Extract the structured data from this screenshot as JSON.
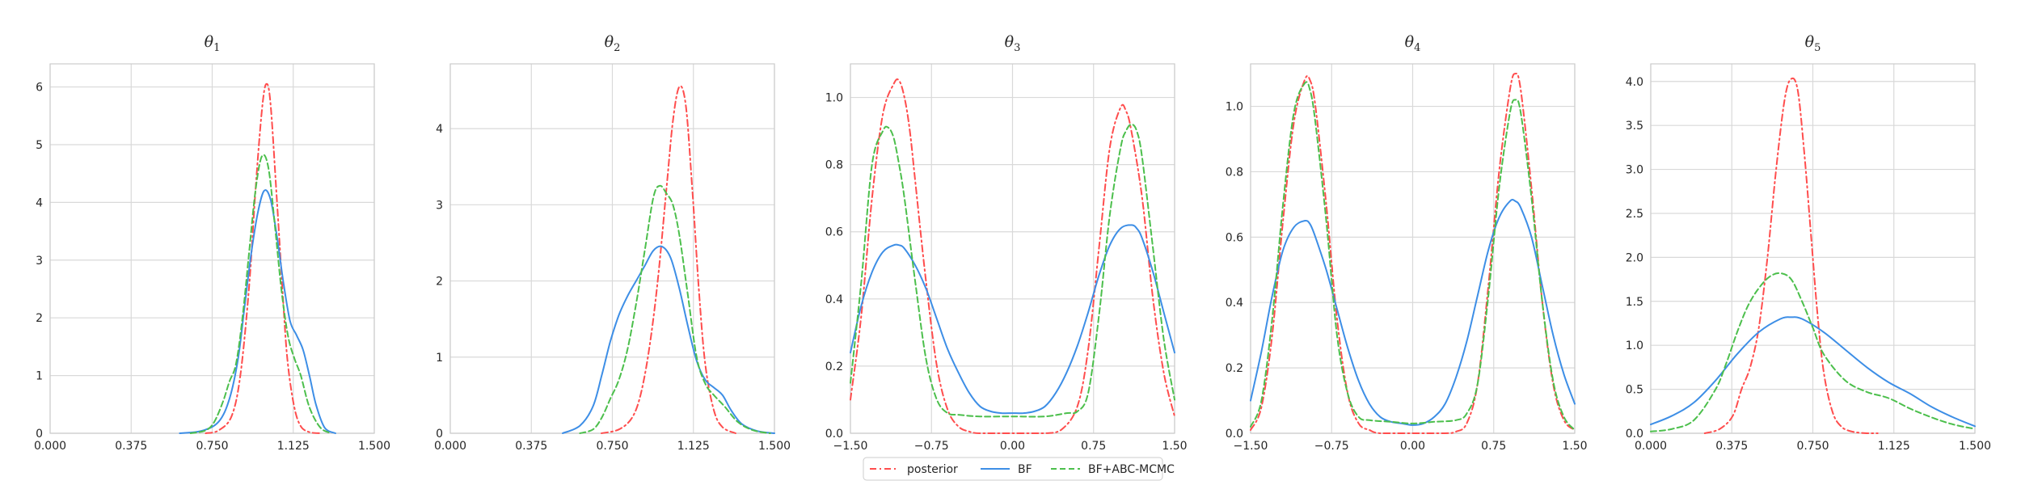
{
  "colors": {
    "posterior": "#ff4d4d",
    "BF": "#3d8ee6",
    "BF+ABC-MCMC": "#4cbf4c",
    "grid": "#d9d9d9",
    "frame": "#cccccc"
  },
  "legend": {
    "placement": "bottom-center",
    "entries": [
      {
        "key": "posterior",
        "label": "posterior",
        "dash": "dashdot"
      },
      {
        "key": "BF",
        "label": "BF",
        "dash": "solid"
      },
      {
        "key": "BF+ABC-MCMC",
        "label": "BF+ABC-MCMC",
        "dash": "dashed"
      }
    ]
  },
  "chart_data": [
    {
      "type": "line",
      "title_main": "θ",
      "title_sub": "1",
      "grid": true,
      "xlim": [
        0,
        1.5
      ],
      "ylim": [
        0,
        6.4
      ],
      "xticks": [
        0,
        0.375,
        0.75,
        1.125,
        1.5
      ],
      "xtick_labels": [
        "0.000",
        "0.375",
        "0.750",
        "1.125",
        "1.500"
      ],
      "yticks": [
        0,
        1,
        2,
        3,
        4,
        5,
        6
      ],
      "ytick_labels": [
        "0",
        "1",
        "2",
        "3",
        "4",
        "5",
        "6"
      ],
      "series": [
        {
          "name": "posterior",
          "x": [
            0.72,
            0.78,
            0.84,
            0.88,
            0.92,
            0.95,
            0.98,
            1.0,
            1.02,
            1.05,
            1.08,
            1.1,
            1.13,
            1.16,
            1.2,
            1.25
          ],
          "y": [
            0,
            0.05,
            0.3,
            1.0,
            2.5,
            4.2,
            5.6,
            6.05,
            5.7,
            4.0,
            2.2,
            1.2,
            0.45,
            0.12,
            0.02,
            0
          ]
        },
        {
          "name": "BF",
          "x": [
            0.6,
            0.7,
            0.78,
            0.83,
            0.87,
            0.9,
            0.93,
            0.96,
            0.99,
            1.02,
            1.05,
            1.08,
            1.11,
            1.14,
            1.17,
            1.2,
            1.23,
            1.27,
            1.32
          ],
          "y": [
            0,
            0.04,
            0.2,
            0.6,
            1.3,
            2.2,
            3.1,
            3.8,
            4.2,
            4.05,
            3.4,
            2.6,
            1.95,
            1.7,
            1.45,
            1.0,
            0.5,
            0.1,
            0
          ]
        },
        {
          "name": "BF+ABC-MCMC",
          "x": [
            0.65,
            0.72,
            0.76,
            0.8,
            0.83,
            0.86,
            0.89,
            0.92,
            0.95,
            0.98,
            1.01,
            1.04,
            1.07,
            1.1,
            1.13,
            1.16,
            1.2,
            1.25,
            1.3
          ],
          "y": [
            0,
            0.05,
            0.2,
            0.55,
            0.9,
            1.2,
            2.0,
            3.1,
            4.2,
            4.8,
            4.6,
            3.6,
            2.5,
            1.7,
            1.3,
            1.0,
            0.45,
            0.1,
            0
          ]
        }
      ]
    },
    {
      "type": "line",
      "title_main": "θ",
      "title_sub": "2",
      "grid": true,
      "xlim": [
        0,
        1.5
      ],
      "ylim": [
        0,
        4.85
      ],
      "xticks": [
        0,
        0.375,
        0.75,
        1.125,
        1.5
      ],
      "xtick_labels": [
        "0.000",
        "0.375",
        "0.750",
        "1.125",
        "1.500"
      ],
      "yticks": [
        0,
        1,
        2,
        3,
        4
      ],
      "ytick_labels": [
        "0",
        "1",
        "2",
        "3",
        "4"
      ],
      "series": [
        {
          "name": "posterior",
          "x": [
            0.7,
            0.78,
            0.84,
            0.88,
            0.92,
            0.96,
            1.0,
            1.03,
            1.06,
            1.09,
            1.12,
            1.15,
            1.18,
            1.22,
            1.26,
            1.32
          ],
          "y": [
            0,
            0.05,
            0.2,
            0.5,
            1.1,
            2.0,
            3.2,
            4.1,
            4.55,
            4.3,
            3.2,
            1.9,
            0.9,
            0.3,
            0.08,
            0
          ]
        },
        {
          "name": "BF",
          "x": [
            0.52,
            0.6,
            0.66,
            0.7,
            0.74,
            0.78,
            0.82,
            0.86,
            0.9,
            0.94,
            0.98,
            1.02,
            1.06,
            1.1,
            1.14,
            1.18,
            1.22,
            1.26,
            1.3,
            1.35,
            1.42,
            1.5
          ],
          "y": [
            0,
            0.1,
            0.35,
            0.75,
            1.2,
            1.55,
            1.8,
            2.0,
            2.2,
            2.4,
            2.45,
            2.3,
            1.9,
            1.4,
            0.95,
            0.7,
            0.6,
            0.5,
            0.3,
            0.12,
            0.03,
            0
          ]
        },
        {
          "name": "BF+ABC-MCMC",
          "x": [
            0.6,
            0.66,
            0.7,
            0.74,
            0.78,
            0.82,
            0.86,
            0.9,
            0.94,
            0.97,
            1.0,
            1.03,
            1.06,
            1.1,
            1.14,
            1.18,
            1.22,
            1.27,
            1.33,
            1.4,
            1.48
          ],
          "y": [
            0,
            0.05,
            0.2,
            0.45,
            0.7,
            1.1,
            1.7,
            2.4,
            3.1,
            3.25,
            3.15,
            3.0,
            2.6,
            1.8,
            1.0,
            0.65,
            0.5,
            0.35,
            0.15,
            0.04,
            0
          ]
        }
      ]
    },
    {
      "type": "line",
      "title_main": "θ",
      "title_sub": "3",
      "grid": true,
      "xlim": [
        -1.5,
        1.5
      ],
      "ylim": [
        0,
        1.1
      ],
      "xticks": [
        -1.5,
        -0.75,
        0,
        0.75,
        1.5
      ],
      "xtick_labels": [
        "−1.50",
        "−0.75",
        "0.00",
        "0.75",
        "1.50"
      ],
      "yticks": [
        0,
        0.2,
        0.4,
        0.6,
        0.8,
        1.0
      ],
      "ytick_labels": [
        "0.0",
        "0.2",
        "0.4",
        "0.6",
        "0.8",
        "1.0"
      ],
      "series": [
        {
          "name": "posterior",
          "x": [
            -1.5,
            -1.4,
            -1.3,
            -1.2,
            -1.1,
            -1.05,
            -1.0,
            -0.95,
            -0.9,
            -0.8,
            -0.7,
            -0.6,
            -0.5,
            -0.4,
            -0.3,
            0,
            0.3,
            0.45,
            0.6,
            0.7,
            0.8,
            0.9,
            1.0,
            1.05,
            1.1,
            1.2,
            1.3,
            1.4,
            1.5
          ],
          "y": [
            0.1,
            0.35,
            0.7,
            0.95,
            1.04,
            1.05,
            1.0,
            0.9,
            0.75,
            0.45,
            0.2,
            0.07,
            0.02,
            0.005,
            0,
            0,
            0,
            0.01,
            0.08,
            0.25,
            0.55,
            0.85,
            0.97,
            0.96,
            0.9,
            0.7,
            0.4,
            0.18,
            0.05
          ]
        },
        {
          "name": "BF",
          "x": [
            -1.5,
            -1.4,
            -1.3,
            -1.2,
            -1.1,
            -1.05,
            -1.0,
            -0.9,
            -0.8,
            -0.7,
            -0.6,
            -0.5,
            -0.4,
            -0.3,
            -0.2,
            -0.1,
            0,
            0.1,
            0.2,
            0.3,
            0.4,
            0.5,
            0.6,
            0.7,
            0.8,
            0.9,
            1.0,
            1.1,
            1.15,
            1.2,
            1.3,
            1.4,
            1.5
          ],
          "y": [
            0.24,
            0.38,
            0.48,
            0.54,
            0.56,
            0.56,
            0.55,
            0.5,
            0.43,
            0.34,
            0.25,
            0.18,
            0.12,
            0.08,
            0.065,
            0.06,
            0.06,
            0.06,
            0.065,
            0.08,
            0.12,
            0.18,
            0.26,
            0.36,
            0.47,
            0.56,
            0.61,
            0.62,
            0.61,
            0.58,
            0.48,
            0.36,
            0.24
          ]
        },
        {
          "name": "BF+ABC-MCMC",
          "x": [
            -1.5,
            -1.4,
            -1.3,
            -1.2,
            -1.15,
            -1.1,
            -1.05,
            -1.0,
            -0.9,
            -0.8,
            -0.7,
            -0.6,
            -0.5,
            -0.3,
            0,
            0.3,
            0.5,
            0.6,
            0.7,
            0.8,
            0.9,
            1.0,
            1.05,
            1.1,
            1.15,
            1.2,
            1.3,
            1.4,
            1.5
          ],
          "y": [
            0.15,
            0.45,
            0.8,
            0.9,
            0.91,
            0.88,
            0.8,
            0.7,
            0.45,
            0.22,
            0.1,
            0.06,
            0.055,
            0.05,
            0.05,
            0.05,
            0.06,
            0.065,
            0.12,
            0.35,
            0.65,
            0.85,
            0.9,
            0.92,
            0.9,
            0.82,
            0.55,
            0.28,
            0.1
          ]
        }
      ]
    },
    {
      "type": "line",
      "title_main": "θ",
      "title_sub": "4",
      "grid": true,
      "xlim": [
        -1.5,
        1.5
      ],
      "ylim": [
        0,
        1.13
      ],
      "xticks": [
        -1.5,
        -0.75,
        0,
        0.75,
        1.5
      ],
      "xtick_labels": [
        "−1.50",
        "−0.75",
        "0.00",
        "0.75",
        "1.50"
      ],
      "yticks": [
        0,
        0.2,
        0.4,
        0.6,
        0.8,
        1.0
      ],
      "ytick_labels": [
        "0.0",
        "0.2",
        "0.4",
        "0.6",
        "0.8",
        "1.0"
      ],
      "series": [
        {
          "name": "posterior",
          "x": [
            -1.5,
            -1.4,
            -1.3,
            -1.2,
            -1.1,
            -1.0,
            -0.95,
            -0.9,
            -0.8,
            -0.7,
            -0.6,
            -0.5,
            -0.4,
            -0.3,
            0,
            0.3,
            0.4,
            0.5,
            0.6,
            0.7,
            0.8,
            0.9,
            0.95,
            1.0,
            1.1,
            1.2,
            1.3,
            1.4,
            1.5
          ],
          "y": [
            0.01,
            0.08,
            0.3,
            0.65,
            0.95,
            1.08,
            1.08,
            1.0,
            0.7,
            0.35,
            0.12,
            0.03,
            0.01,
            0,
            0,
            0,
            0.005,
            0.03,
            0.15,
            0.45,
            0.8,
            1.05,
            1.1,
            1.05,
            0.75,
            0.4,
            0.15,
            0.04,
            0.01
          ]
        },
        {
          "name": "BF",
          "x": [
            -1.5,
            -1.4,
            -1.3,
            -1.2,
            -1.1,
            -1.0,
            -0.95,
            -0.9,
            -0.8,
            -0.7,
            -0.6,
            -0.5,
            -0.4,
            -0.3,
            -0.2,
            -0.1,
            0,
            0.1,
            0.2,
            0.3,
            0.4,
            0.5,
            0.6,
            0.7,
            0.8,
            0.9,
            0.95,
            1.0,
            1.1,
            1.2,
            1.3,
            1.4,
            1.5
          ],
          "y": [
            0.1,
            0.25,
            0.42,
            0.56,
            0.63,
            0.65,
            0.64,
            0.6,
            0.5,
            0.38,
            0.26,
            0.16,
            0.09,
            0.05,
            0.035,
            0.03,
            0.025,
            0.03,
            0.05,
            0.09,
            0.17,
            0.28,
            0.42,
            0.56,
            0.66,
            0.71,
            0.71,
            0.69,
            0.6,
            0.45,
            0.3,
            0.18,
            0.09
          ]
        },
        {
          "name": "BF+ABC-MCMC",
          "x": [
            -1.5,
            -1.4,
            -1.3,
            -1.2,
            -1.1,
            -1.0,
            -0.95,
            -0.9,
            -0.8,
            -0.7,
            -0.6,
            -0.5,
            -0.4,
            -0.2,
            0,
            0.2,
            0.4,
            0.5,
            0.6,
            0.7,
            0.8,
            0.9,
            0.95,
            1.0,
            1.1,
            1.2,
            1.3,
            1.4,
            1.5
          ],
          "y": [
            0.02,
            0.1,
            0.35,
            0.7,
            0.98,
            1.07,
            1.05,
            0.95,
            0.65,
            0.3,
            0.12,
            0.05,
            0.04,
            0.035,
            0.03,
            0.035,
            0.04,
            0.06,
            0.15,
            0.42,
            0.75,
            0.98,
            1.02,
            0.98,
            0.72,
            0.4,
            0.16,
            0.05,
            0.01
          ]
        }
      ]
    },
    {
      "type": "line",
      "title_main": "θ",
      "title_sub": "5",
      "grid": true,
      "xlim": [
        0,
        1.5
      ],
      "ylim": [
        0,
        4.2
      ],
      "xticks": [
        0,
        0.375,
        0.75,
        1.125,
        1.5
      ],
      "xtick_labels": [
        "0.000",
        "0.375",
        "0.750",
        "1.125",
        "1.500"
      ],
      "yticks": [
        0,
        0.5,
        1.0,
        1.5,
        2.0,
        2.5,
        3.0,
        3.5,
        4.0
      ],
      "ytick_labels": [
        "0.0",
        "0.5",
        "1.0",
        "1.5",
        "2.0",
        "2.5",
        "3.0",
        "3.5",
        "4.0"
      ],
      "series": [
        {
          "name": "posterior",
          "x": [
            0.25,
            0.32,
            0.38,
            0.42,
            0.46,
            0.5,
            0.54,
            0.58,
            0.62,
            0.65,
            0.68,
            0.71,
            0.74,
            0.77,
            0.8,
            0.84,
            0.88,
            0.93,
            1.0,
            1.05
          ],
          "y": [
            0,
            0.05,
            0.2,
            0.5,
            0.75,
            1.2,
            2.0,
            3.0,
            3.8,
            4.03,
            3.9,
            3.2,
            2.3,
            1.4,
            0.7,
            0.25,
            0.08,
            0.02,
            0,
            0
          ]
        },
        {
          "name": "BF",
          "x": [
            0,
            0.1,
            0.2,
            0.3,
            0.4,
            0.5,
            0.6,
            0.65,
            0.7,
            0.8,
            0.9,
            1.0,
            1.1,
            1.2,
            1.3,
            1.4,
            1.5
          ],
          "y": [
            0.1,
            0.2,
            0.35,
            0.6,
            0.9,
            1.15,
            1.3,
            1.32,
            1.3,
            1.15,
            0.95,
            0.75,
            0.58,
            0.45,
            0.3,
            0.18,
            0.08
          ]
        },
        {
          "name": "BF+ABC-MCMC",
          "x": [
            0,
            0.1,
            0.2,
            0.3,
            0.35,
            0.4,
            0.45,
            0.5,
            0.55,
            0.6,
            0.65,
            0.7,
            0.75,
            0.8,
            0.9,
            1.0,
            1.1,
            1.2,
            1.3,
            1.4,
            1.5
          ],
          "y": [
            0.02,
            0.05,
            0.15,
            0.5,
            0.8,
            1.15,
            1.45,
            1.65,
            1.78,
            1.82,
            1.75,
            1.5,
            1.2,
            0.9,
            0.6,
            0.47,
            0.4,
            0.28,
            0.18,
            0.1,
            0.05
          ]
        }
      ]
    }
  ]
}
